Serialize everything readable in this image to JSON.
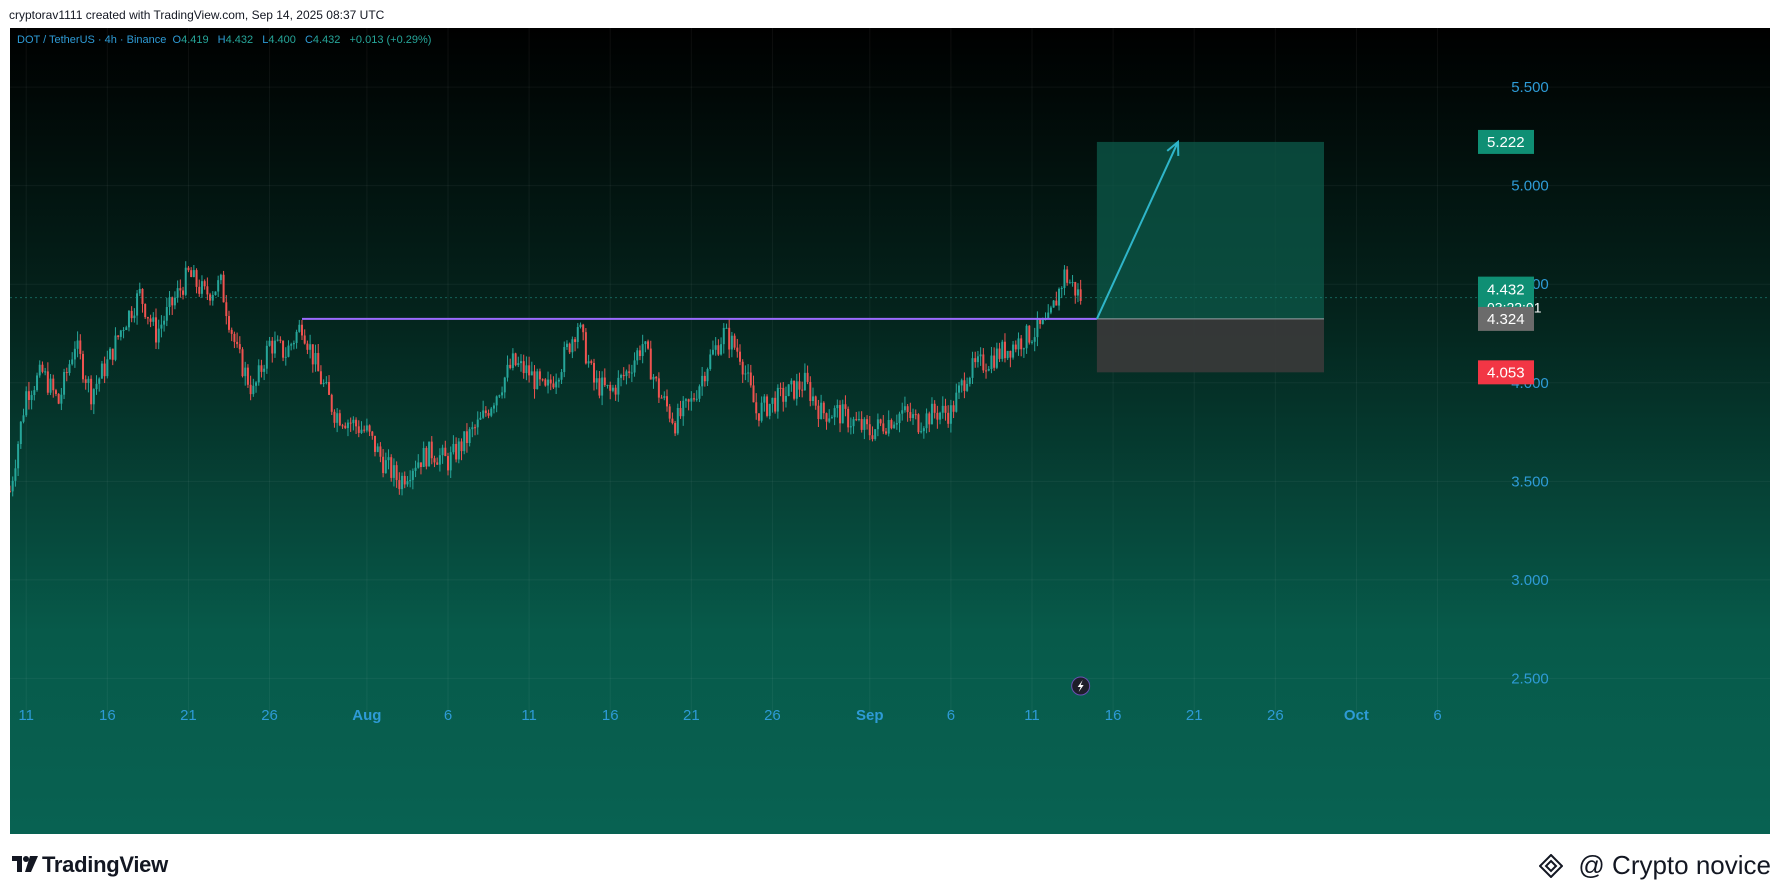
{
  "header": {
    "credit": "cryptorav1111 created with TradingView.com, Sep 14, 2025 08:37 UTC"
  },
  "legend": {
    "symbol": "DOT / TetherUS · 4h · Binance",
    "open_label": "O",
    "open": "4.419",
    "high_label": "H",
    "high": "4.432",
    "low_label": "L",
    "low": "4.400",
    "close_label": "C",
    "close": "4.432",
    "change": "+0.013 (+0.29%)"
  },
  "footer": {
    "brand": "TradingView",
    "watermark": "@ Crypto novice"
  },
  "colors": {
    "up": "#26a69a",
    "down": "#ef5350",
    "axis_text": "#2e9bd6",
    "resistance": "#9b6bff",
    "target_zone": "#0c5a4a",
    "stop_zone": "#3a3a3a",
    "target_badge": "#0f8f74",
    "current_badge": "#0f8f74",
    "entry_badge": "#6b6b6b",
    "stop_badge": "#f23645"
  },
  "chart_data": {
    "type": "candlestick",
    "timeframe": "4h",
    "x_range": [
      "2025-07-10",
      "2025-10-08"
    ],
    "ylim": [
      2.35,
      5.8
    ],
    "y_ticks": [
      2.5,
      3.0,
      3.5,
      4.0,
      4.5,
      5.0,
      5.5
    ],
    "y_tick_labels": [
      "2.500",
      "3.000",
      "3.500",
      "4.000",
      "4.500",
      "5.000",
      "5.500"
    ],
    "x_ticks": [
      {
        "date": "2025-07-11",
        "label": "11"
      },
      {
        "date": "2025-07-16",
        "label": "16"
      },
      {
        "date": "2025-07-21",
        "label": "21"
      },
      {
        "date": "2025-07-26",
        "label": "26"
      },
      {
        "date": "2025-08-01",
        "label": "Aug"
      },
      {
        "date": "2025-08-06",
        "label": "6"
      },
      {
        "date": "2025-08-11",
        "label": "11"
      },
      {
        "date": "2025-08-16",
        "label": "16"
      },
      {
        "date": "2025-08-21",
        "label": "21"
      },
      {
        "date": "2025-08-26",
        "label": "26"
      },
      {
        "date": "2025-09-01",
        "label": "Sep"
      },
      {
        "date": "2025-09-06",
        "label": "6"
      },
      {
        "date": "2025-09-11",
        "label": "11"
      },
      {
        "date": "2025-09-16",
        "label": "16"
      },
      {
        "date": "2025-09-21",
        "label": "21"
      },
      {
        "date": "2025-09-26",
        "label": "26"
      },
      {
        "date": "2025-10-01",
        "label": "Oct"
      },
      {
        "date": "2025-10-06",
        "label": "6"
      }
    ],
    "price_path": [
      [
        "2025-07-10",
        3.45
      ],
      [
        "2025-07-11",
        3.95
      ],
      [
        "2025-07-12",
        4.05
      ],
      [
        "2025-07-13",
        3.9
      ],
      [
        "2025-07-14",
        4.2
      ],
      [
        "2025-07-15",
        3.95
      ],
      [
        "2025-07-16",
        4.1
      ],
      [
        "2025-07-17",
        4.3
      ],
      [
        "2025-07-18",
        4.45
      ],
      [
        "2025-07-19",
        4.25
      ],
      [
        "2025-07-20",
        4.4
      ],
      [
        "2025-07-21",
        4.55
      ],
      [
        "2025-07-22",
        4.45
      ],
      [
        "2025-07-23",
        4.5
      ],
      [
        "2025-07-24",
        4.15
      ],
      [
        "2025-07-25",
        3.95
      ],
      [
        "2025-07-26",
        4.2
      ],
      [
        "2025-07-27",
        4.15
      ],
      [
        "2025-07-28",
        4.3
      ],
      [
        "2025-07-29",
        4.05
      ],
      [
        "2025-07-30",
        3.85
      ],
      [
        "2025-08-01",
        3.75
      ],
      [
        "2025-08-02",
        3.6
      ],
      [
        "2025-08-03",
        3.5
      ],
      [
        "2025-08-04",
        3.6
      ],
      [
        "2025-08-05",
        3.65
      ],
      [
        "2025-08-06",
        3.6
      ],
      [
        "2025-08-07",
        3.7
      ],
      [
        "2025-08-08",
        3.8
      ],
      [
        "2025-08-09",
        3.95
      ],
      [
        "2025-08-10",
        4.1
      ],
      [
        "2025-08-11",
        4.05
      ],
      [
        "2025-08-12",
        3.95
      ],
      [
        "2025-08-13",
        4.1
      ],
      [
        "2025-08-14",
        4.3
      ],
      [
        "2025-08-15",
        4.0
      ],
      [
        "2025-08-16",
        3.95
      ],
      [
        "2025-08-17",
        4.05
      ],
      [
        "2025-08-18",
        4.2
      ],
      [
        "2025-08-19",
        3.95
      ],
      [
        "2025-08-20",
        3.8
      ],
      [
        "2025-08-21",
        3.9
      ],
      [
        "2025-08-22",
        4.1
      ],
      [
        "2025-08-23",
        4.25
      ],
      [
        "2025-08-24",
        4.15
      ],
      [
        "2025-08-25",
        3.85
      ],
      [
        "2025-08-26",
        3.9
      ],
      [
        "2025-08-27",
        3.95
      ],
      [
        "2025-08-28",
        4.0
      ],
      [
        "2025-08-29",
        3.85
      ],
      [
        "2025-08-30",
        3.85
      ],
      [
        "2025-08-31",
        3.8
      ],
      [
        "2025-09-01",
        3.75
      ],
      [
        "2025-09-02",
        3.8
      ],
      [
        "2025-09-03",
        3.85
      ],
      [
        "2025-09-04",
        3.8
      ],
      [
        "2025-09-05",
        3.85
      ],
      [
        "2025-09-06",
        3.85
      ],
      [
        "2025-09-07",
        4.05
      ],
      [
        "2025-09-08",
        4.1
      ],
      [
        "2025-09-09",
        4.15
      ],
      [
        "2025-09-10",
        4.2
      ],
      [
        "2025-09-11",
        4.25
      ],
      [
        "2025-09-12",
        4.3
      ],
      [
        "2025-09-13",
        4.55
      ],
      [
        "2025-09-14",
        4.432
      ]
    ],
    "resistance_line": {
      "value": 4.324,
      "from": "2025-07-28",
      "to": "2025-09-15"
    },
    "position_tool": {
      "type": "long",
      "from": "2025-09-15",
      "to": "2025-09-29",
      "entry": 4.324,
      "target": 5.222,
      "stop": 4.053
    },
    "projection_arrow": {
      "from_date": "2025-09-15",
      "from_value": 4.324,
      "to_date": "2025-09-20",
      "to_value": 5.222
    },
    "current_price": 4.432,
    "price_labels": {
      "target": "5.222",
      "current": "4.432",
      "countdown": "03:22:01",
      "entry": "4.324",
      "stop": "4.053"
    }
  }
}
